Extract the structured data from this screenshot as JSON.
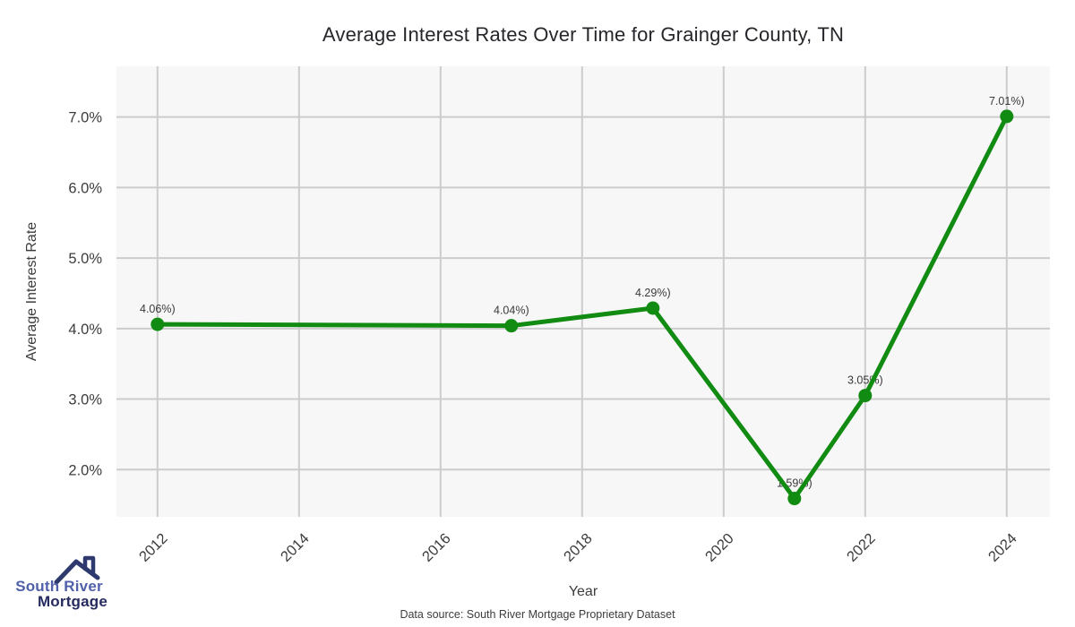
{
  "title": "Average Interest Rates Over Time for Grainger County, TN",
  "chart_data": {
    "type": "line",
    "x": [
      2012,
      2017,
      2019,
      2021,
      2022,
      2024
    ],
    "values": [
      4.06,
      4.04,
      4.29,
      1.59,
      3.05,
      7.01
    ],
    "point_labels": [
      "4.06%)",
      "4.04%)",
      "4.29%)",
      "1.59%)",
      "3.05%)",
      "7.01%)"
    ],
    "title": "Average Interest Rates Over Time for Grainger County, TN",
    "xlabel": "Year",
    "ylabel": "Average Interest Rate",
    "x_ticks": [
      2012,
      2014,
      2016,
      2018,
      2020,
      2022,
      2024
    ],
    "x_tick_labels": [
      "2012",
      "2014",
      "2016",
      "2018",
      "2020",
      "2022",
      "2024"
    ],
    "y_ticks": [
      2,
      3,
      4,
      5,
      6,
      7
    ],
    "y_tick_labels": [
      "2.0%",
      "3.0%",
      "4.0%",
      "5.0%",
      "6.0%",
      "7.0%"
    ],
    "xlim": [
      2011.42,
      2024.61
    ],
    "ylim": [
      1.33,
      7.72
    ],
    "grid": true,
    "legend_position": "none",
    "line_color": "#118b11",
    "marker_color": "#118b11",
    "plot_bg_color": "#f7f7f7",
    "grid_color": "#cccccc",
    "tick_color": "#3c3c3c",
    "point_label_color": "#3a3a3a"
  },
  "footer": {
    "source_text": "Data source: South River Mortgage Proprietary Dataset"
  },
  "logo": {
    "icon": "house-roof-icon",
    "line1": "South River",
    "line2": "Mortgage",
    "line1_color": "#5060aa",
    "line2_color": "#262b5f",
    "roof_color": "#2e3a6e"
  }
}
